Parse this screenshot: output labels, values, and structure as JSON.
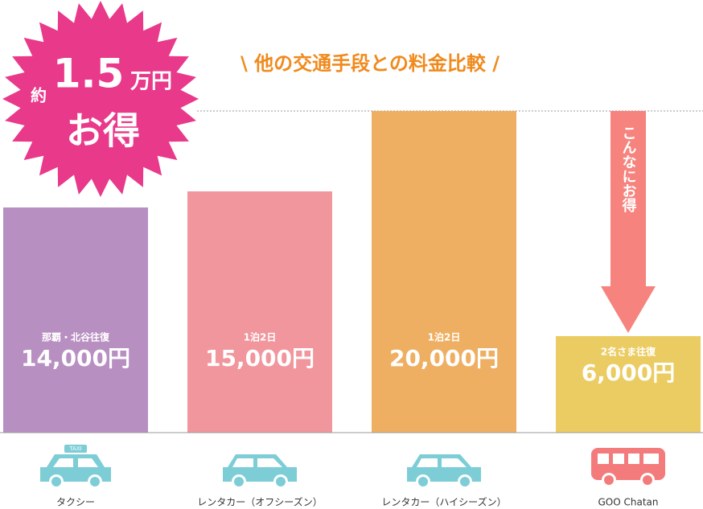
{
  "chart_data": {
    "type": "bar",
    "title": "\\ 他の交通手段との料金比較 /",
    "badge": {
      "prefix": "約",
      "amount": "1.5",
      "unit": "万円",
      "text": "お得"
    },
    "arrow_text": "こんなにお得",
    "taxi_sign": "TAXI",
    "categories": [
      "タクシー",
      "レンタカー（オフシーズン）",
      "レンタカー（ハイシーズン）",
      "GOO Chatan"
    ],
    "notes": [
      "那覇・北谷往復",
      "1泊2日",
      "1泊2日",
      "2名さま往復"
    ],
    "values": [
      14000,
      15000,
      20000,
      6000
    ],
    "value_labels": [
      "14,000円",
      "15,000円",
      "20,000円",
      "6,000円"
    ],
    "colors": [
      "#b88fc1",
      "#f0969c",
      "#eeaf62",
      "#ebcc62"
    ],
    "ylim": [
      0,
      20000
    ]
  }
}
